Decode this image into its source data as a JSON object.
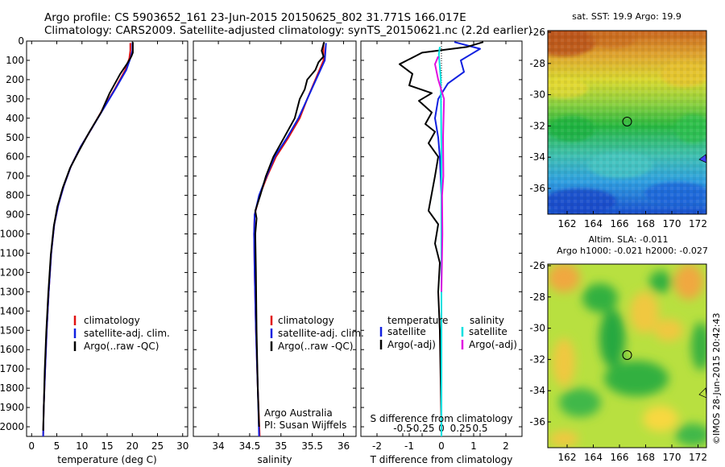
{
  "header": {
    "title_line1": "Argo profile: CS 5903652_161 23-Jun-2015 20150625_802 31.771S 166.017E",
    "title_line2": "Climatology: CARS2009. Satellite-adjusted climatology: synTS_20150621.nc (2.2d earlier)"
  },
  "colors": {
    "climatology": "#e01010",
    "satellite": "#1020e0",
    "argo": "#000000",
    "sat_salinity": "#00e0e0",
    "argo_salinity": "#e010e0"
  },
  "depth_axis": {
    "ylim": [
      0,
      2050
    ],
    "ticks": [
      0,
      100,
      200,
      300,
      400,
      500,
      600,
      700,
      800,
      900,
      1000,
      1100,
      1200,
      1300,
      1400,
      1500,
      1600,
      1700,
      1800,
      1900,
      2000
    ]
  },
  "chart_data": [
    {
      "id": "temperature",
      "type": "line",
      "xlabel": "temperature (deg C)",
      "xlim": [
        -1,
        31
      ],
      "xticks": [
        0,
        5,
        10,
        15,
        20,
        25,
        30
      ],
      "xtick_labels": [
        "0",
        "5",
        "10",
        "15",
        "20",
        "25",
        "30"
      ],
      "legend": [
        "climatology",
        "satellite-adj. clim.",
        "Argo(..raw -QC)"
      ],
      "series": [
        {
          "name": "climatology",
          "color": "#e01010",
          "points": [
            [
              19.6,
              10
            ],
            [
              19.6,
              50
            ],
            [
              19.4,
              90
            ],
            [
              18.6,
              150
            ],
            [
              16.5,
              250
            ],
            [
              14.2,
              350
            ],
            [
              12,
              450
            ],
            [
              9.7,
              550
            ],
            [
              7.8,
              650
            ],
            [
              6.4,
              750
            ],
            [
              5.3,
              850
            ],
            [
              4.5,
              950
            ],
            [
              3.9,
              1100
            ],
            [
              3.4,
              1300
            ],
            [
              3.0,
              1500
            ],
            [
              2.7,
              1700
            ],
            [
              2.4,
              1900
            ],
            [
              2.3,
              2050
            ]
          ]
        },
        {
          "name": "satellite-adj. clim.",
          "color": "#1020e0",
          "points": [
            [
              20.0,
              10
            ],
            [
              20.0,
              50
            ],
            [
              19.6,
              90
            ],
            [
              18.8,
              150
            ],
            [
              16.6,
              250
            ],
            [
              14.3,
              350
            ],
            [
              12,
              450
            ],
            [
              9.7,
              550
            ],
            [
              7.8,
              650
            ],
            [
              6.4,
              750
            ],
            [
              5.3,
              850
            ],
            [
              4.5,
              950
            ],
            [
              3.9,
              1100
            ],
            [
              3.4,
              1300
            ],
            [
              3.0,
              1500
            ],
            [
              2.7,
              1700
            ],
            [
              2.4,
              1900
            ],
            [
              2.3,
              2050
            ]
          ]
        },
        {
          "name": "Argo(..raw -QC)",
          "color": "#000000",
          "points": [
            [
              20.1,
              5
            ],
            [
              20.1,
              60
            ],
            [
              19.8,
              80
            ],
            [
              18.9,
              120
            ],
            [
              17.6,
              170
            ],
            [
              15.5,
              270
            ],
            [
              13.8,
              370
            ],
            [
              11.5,
              470
            ],
            [
              9.4,
              570
            ],
            [
              7.6,
              660
            ],
            [
              6.2,
              760
            ],
            [
              5.1,
              860
            ],
            [
              4.4,
              960
            ],
            [
              3.8,
              1110
            ],
            [
              3.3,
              1310
            ],
            [
              2.9,
              1510
            ],
            [
              2.6,
              1710
            ],
            [
              2.4,
              1910
            ],
            [
              2.3,
              2020
            ]
          ]
        }
      ]
    },
    {
      "id": "salinity",
      "type": "line",
      "xlabel": "salinity",
      "xlim": [
        33.6,
        36.2
      ],
      "xticks": [
        34,
        34.5,
        35,
        35.5,
        36
      ],
      "xtick_labels": [
        "34",
        "34.5",
        "35",
        "35.5",
        "36"
      ],
      "legend": [
        "climatology",
        "satellite-adj. clim.",
        "Argo(..raw -QC)"
      ],
      "series": [
        {
          "name": "climatology",
          "color": "#e01010",
          "points": [
            [
              35.68,
              10
            ],
            [
              35.68,
              100
            ],
            [
              35.55,
              200
            ],
            [
              35.42,
              300
            ],
            [
              35.3,
              400
            ],
            [
              35.12,
              500
            ],
            [
              34.92,
              600
            ],
            [
              34.78,
              700
            ],
            [
              34.66,
              800
            ],
            [
              34.58,
              900
            ],
            [
              34.57,
              1000
            ],
            [
              34.58,
              1200
            ],
            [
              34.6,
              1500
            ],
            [
              34.63,
              1800
            ],
            [
              34.66,
              2050
            ]
          ]
        },
        {
          "name": "satellite-adj. clim.",
          "color": "#1020e0",
          "points": [
            [
              35.72,
              10
            ],
            [
              35.7,
              100
            ],
            [
              35.56,
              200
            ],
            [
              35.42,
              300
            ],
            [
              35.28,
              400
            ],
            [
              35.1,
              500
            ],
            [
              34.9,
              600
            ],
            [
              34.77,
              700
            ],
            [
              34.65,
              800
            ],
            [
              34.58,
              900
            ],
            [
              34.57,
              1000
            ],
            [
              34.58,
              1200
            ],
            [
              34.6,
              1500
            ],
            [
              34.63,
              1800
            ],
            [
              34.65,
              2050
            ]
          ]
        },
        {
          "name": "Argo(..raw -QC)",
          "color": "#000000",
          "points": [
            [
              35.69,
              5
            ],
            [
              35.65,
              50
            ],
            [
              35.68,
              80
            ],
            [
              35.6,
              110
            ],
            [
              35.55,
              150
            ],
            [
              35.42,
              200
            ],
            [
              35.38,
              250
            ],
            [
              35.3,
              300
            ],
            [
              35.22,
              400
            ],
            [
              35.05,
              500
            ],
            [
              34.88,
              600
            ],
            [
              34.76,
              700
            ],
            [
              34.67,
              800
            ],
            [
              34.59,
              880
            ],
            [
              34.61,
              920
            ],
            [
              34.59,
              1000
            ],
            [
              34.6,
              1200
            ],
            [
              34.61,
              1500
            ],
            [
              34.63,
              1800
            ],
            [
              34.65,
              2000
            ]
          ]
        }
      ]
    },
    {
      "id": "differences",
      "type": "line",
      "xlabel": "T difference from climatology",
      "xlim": [
        -2.5,
        2.5
      ],
      "xticks": [
        -2,
        -1,
        0,
        1,
        2
      ],
      "xtick_labels": [
        "-2",
        "-1",
        "0",
        "1",
        "2"
      ],
      "xlabel_top": "S difference from climatology",
      "sticks": [
        -0.5,
        -0.25,
        0,
        0.25,
        0.5
      ],
      "stick_labels": [
        "-0.5",
        "-0.25",
        "0",
        "0.25",
        "0.5"
      ],
      "legend_titles": [
        "temperature",
        "salinity"
      ],
      "legend": [
        "satellite",
        "Argo(-adj)",
        "satellite",
        "Argo(-adj)"
      ],
      "series": [
        {
          "name": "temperature satellite",
          "color": "#1020e0",
          "points": [
            [
              0.4,
              5
            ],
            [
              1.2,
              40
            ],
            [
              0.9,
              70
            ],
            [
              0.6,
              100
            ],
            [
              0.7,
              160
            ],
            [
              0.2,
              220
            ],
            [
              -0.1,
              300
            ],
            [
              -0.2,
              400
            ],
            [
              -0.1,
              500
            ],
            [
              -0.05,
              600
            ],
            [
              0,
              800
            ],
            [
              0,
              1000
            ],
            [
              0,
              1500
            ],
            [
              0,
              2050
            ]
          ]
        },
        {
          "name": "temperature Argo(-adj)",
          "color": "#000000",
          "points": [
            [
              1.3,
              5
            ],
            [
              0.8,
              30
            ],
            [
              -0.6,
              60
            ],
            [
              -1.3,
              120
            ],
            [
              -0.9,
              170
            ],
            [
              -1.0,
              230
            ],
            [
              -0.3,
              270
            ],
            [
              -0.7,
              310
            ],
            [
              -0.3,
              370
            ],
            [
              -0.5,
              430
            ],
            [
              -0.2,
              470
            ],
            [
              -0.4,
              530
            ],
            [
              -0.1,
              600
            ],
            [
              -0.2,
              700
            ],
            [
              -0.4,
              880
            ],
            [
              -0.1,
              950
            ],
            [
              -0.2,
              1050
            ],
            [
              -0.05,
              1150
            ],
            [
              -0.1,
              1300
            ],
            [
              -0.05,
              1500
            ],
            [
              0,
              2000
            ]
          ]
        },
        {
          "name": "salinity satellite",
          "color": "#00e0e0",
          "points": [
            [
              -0.05,
              30
            ],
            [
              -0.08,
              70
            ],
            [
              -0.02,
              200
            ],
            [
              0,
              600
            ],
            [
              0,
              1000
            ],
            [
              0,
              1500
            ],
            [
              0,
              2050
            ]
          ]
        },
        {
          "name": "salinity Argo(-adj)",
          "color": "#e010e0",
          "points": [
            [
              -0.1,
              80
            ],
            [
              -0.2,
              120
            ],
            [
              -0.1,
              200
            ],
            [
              0.08,
              300
            ],
            [
              0.05,
              500
            ],
            [
              0.06,
              700
            ],
            [
              0.02,
              800
            ],
            [
              0.03,
              1000
            ],
            [
              0,
              1300
            ]
          ]
        }
      ]
    }
  ],
  "sst_map": {
    "title": "sat. SST: 19.9 Argo: 19.9",
    "xticks": [
      "162",
      "164",
      "166",
      "168",
      "170",
      "172"
    ],
    "yticks": [
      "-26",
      "-28",
      "-30",
      "-32",
      "-34",
      "-36"
    ]
  },
  "sla_map": {
    "title": "Altim. SLA: -0.011",
    "subtitle": "Argo h1000: -0.021 h2000: -0.027",
    "xticks": [
      "162",
      "164",
      "166",
      "168",
      "170",
      "172"
    ],
    "yticks": [
      "-26",
      "-28",
      "-30",
      "-32",
      "-34",
      "-36"
    ]
  },
  "annotations": {
    "institution": "Argo Australia",
    "pi": "PI: Susan Wijffels",
    "credit": "©IMOS 28-Jun-2015 20:42:43"
  }
}
